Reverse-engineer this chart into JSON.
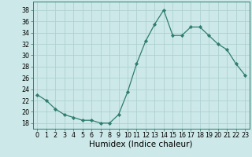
{
  "x": [
    0,
    1,
    2,
    3,
    4,
    5,
    6,
    7,
    8,
    9,
    10,
    11,
    12,
    13,
    14,
    15,
    16,
    17,
    18,
    19,
    20,
    21,
    22,
    23
  ],
  "y": [
    23,
    22,
    20.5,
    19.5,
    19,
    18.5,
    18.5,
    18,
    18,
    19.5,
    23.5,
    28.5,
    32.5,
    35.5,
    38,
    33.5,
    33.5,
    35,
    35,
    33.5,
    32,
    31,
    28.5,
    26.5
  ],
  "xlabel": "Humidex (Indice chaleur)",
  "xlim": [
    -0.5,
    23.5
  ],
  "ylim": [
    17,
    39.5
  ],
  "yticks": [
    18,
    20,
    22,
    24,
    26,
    28,
    30,
    32,
    34,
    36,
    38
  ],
  "xticks": [
    0,
    1,
    2,
    3,
    4,
    5,
    6,
    7,
    8,
    9,
    10,
    11,
    12,
    13,
    14,
    15,
    16,
    17,
    18,
    19,
    20,
    21,
    22,
    23
  ],
  "line_color": "#2e7d6e",
  "marker_color": "#2e7d6e",
  "bg_color": "#cce8e8",
  "grid_color": "#aacece",
  "tick_label_fontsize": 5.8,
  "xlabel_fontsize": 7.5
}
